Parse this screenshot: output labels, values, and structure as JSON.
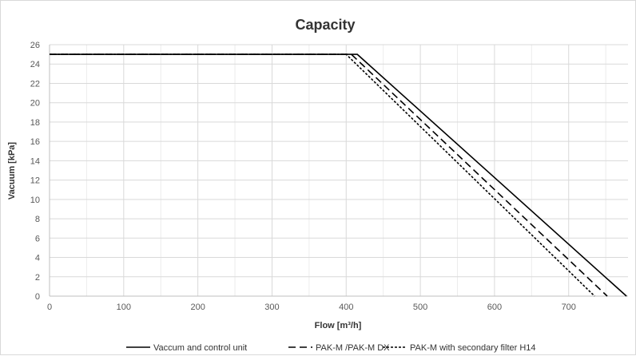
{
  "chart_data": {
    "type": "line",
    "title": "Capacity",
    "xlabel": "Flow [m³/h]",
    "ylabel": "Vacuum [kPa]",
    "xlim": [
      0,
      780
    ],
    "ylim": [
      0,
      26
    ],
    "x_ticks": [
      0,
      100,
      200,
      300,
      400,
      500,
      600,
      700
    ],
    "y_ticks": [
      0,
      2,
      4,
      6,
      8,
      10,
      12,
      14,
      16,
      18,
      20,
      22,
      24,
      26
    ],
    "grid": true,
    "legend_position": "bottom",
    "series": [
      {
        "name": "Vaccum and control unit",
        "style": "solid",
        "color": "#000000",
        "x": [
          0,
          415,
          778
        ],
        "y": [
          25,
          25,
          0
        ]
      },
      {
        "name": "PAK-M /PAK-M DX",
        "style": "dashed",
        "color": "#000000",
        "x": [
          0,
          407,
          752
        ],
        "y": [
          25,
          25,
          0
        ]
      },
      {
        "name": "PAK-M with secondary filter H14",
        "style": "dotted",
        "color": "#000000",
        "x": [
          0,
          400,
          735
        ],
        "y": [
          25,
          25,
          0
        ]
      }
    ]
  }
}
